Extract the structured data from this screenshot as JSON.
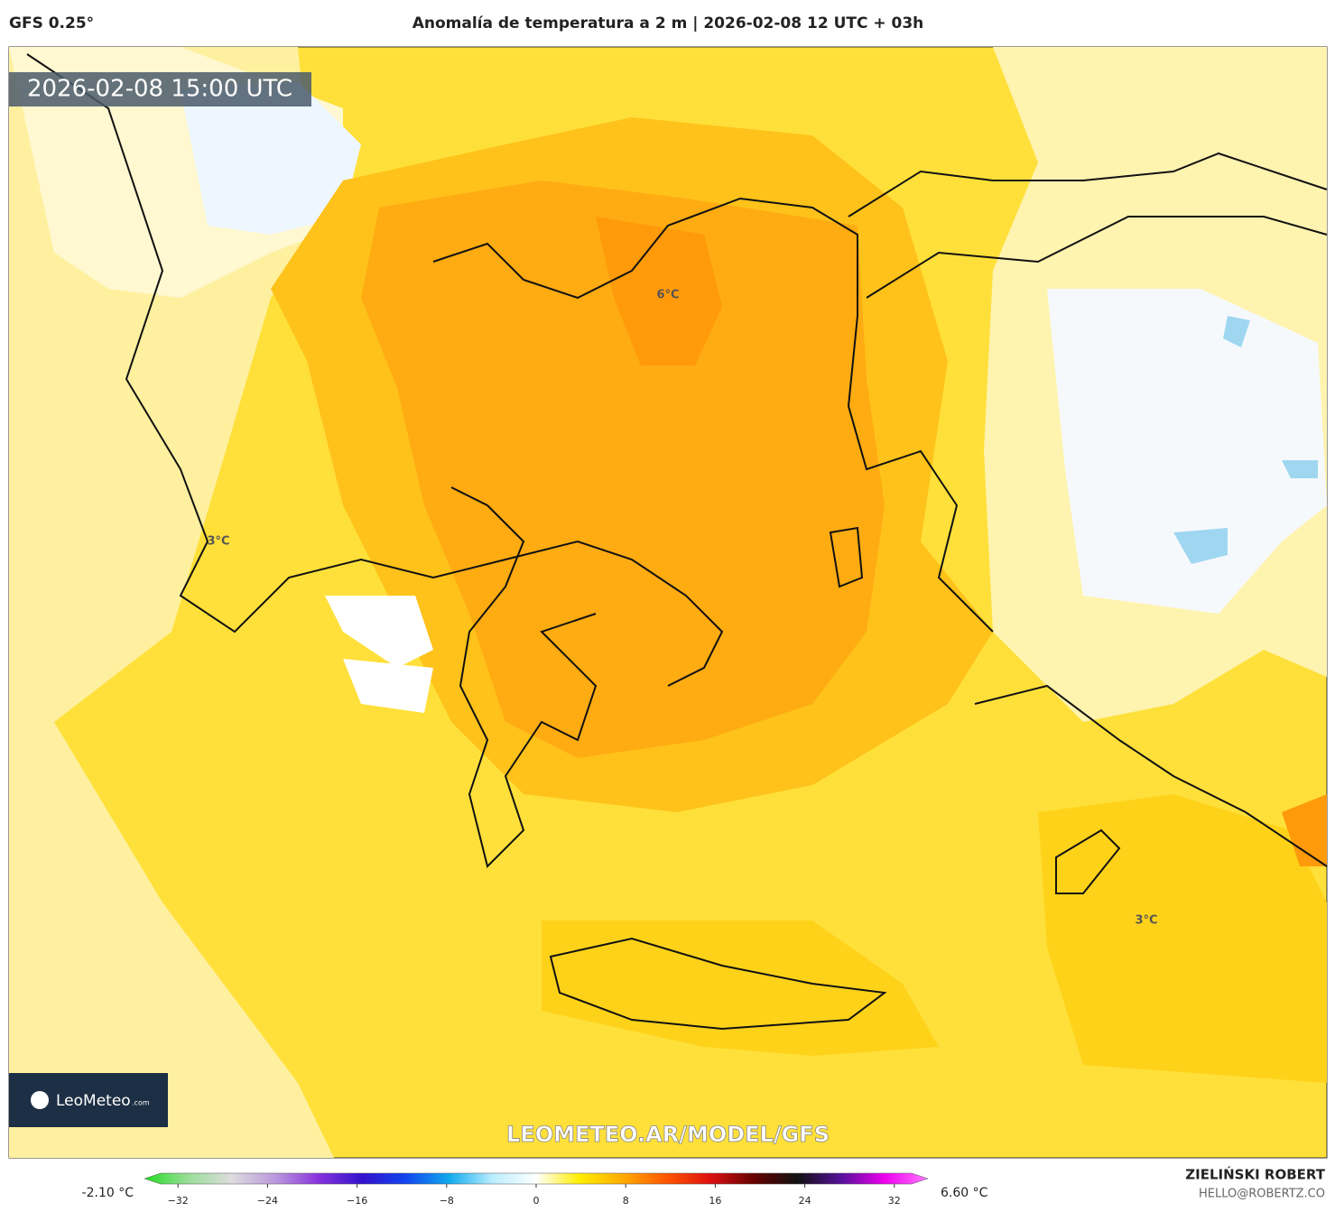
{
  "header": {
    "model": "GFS 0.25°",
    "title": "Anomalía de temperatura a 2 m | 2026-02-08 12 UTC + 03h"
  },
  "map": {
    "valid_time": "2026-02-08 15:00 UTC",
    "labels": [
      "6°C",
      "3°C",
      "3°C"
    ],
    "logo": "LeoMeteo",
    "logo_suffix": ".com",
    "watermark": "LEOMETEO.AR/MODEL/GFS"
  },
  "colorbar": {
    "min_label": "-2.10 °C",
    "max_label": "6.60 °C",
    "lim": [
      -35,
      35
    ],
    "ticks": [
      {
        "value": -32,
        "label": "−32"
      },
      {
        "value": -24,
        "label": "−24"
      },
      {
        "value": -16,
        "label": "−16"
      },
      {
        "value": -8,
        "label": "−8"
      },
      0,
      8,
      16,
      24,
      32
    ],
    "colors": [
      "#22dd22",
      "#99dd99",
      "#dddddd",
      "#bb99dd",
      "#8833dd",
      "#3311cc",
      "#1144ee",
      "#11aaee",
      "#bbeeff",
      "#ffffff",
      "#ffee00",
      "#ffaa00",
      "#ff5500",
      "#dd1111",
      "#660000",
      "#111111",
      "#551199",
      "#ee00ee",
      "#ff77ff"
    ]
  },
  "footer": {
    "author": "ZIELIŃSKI ROBERT",
    "contact": "HELLO@ROBERTZ.CO"
  }
}
